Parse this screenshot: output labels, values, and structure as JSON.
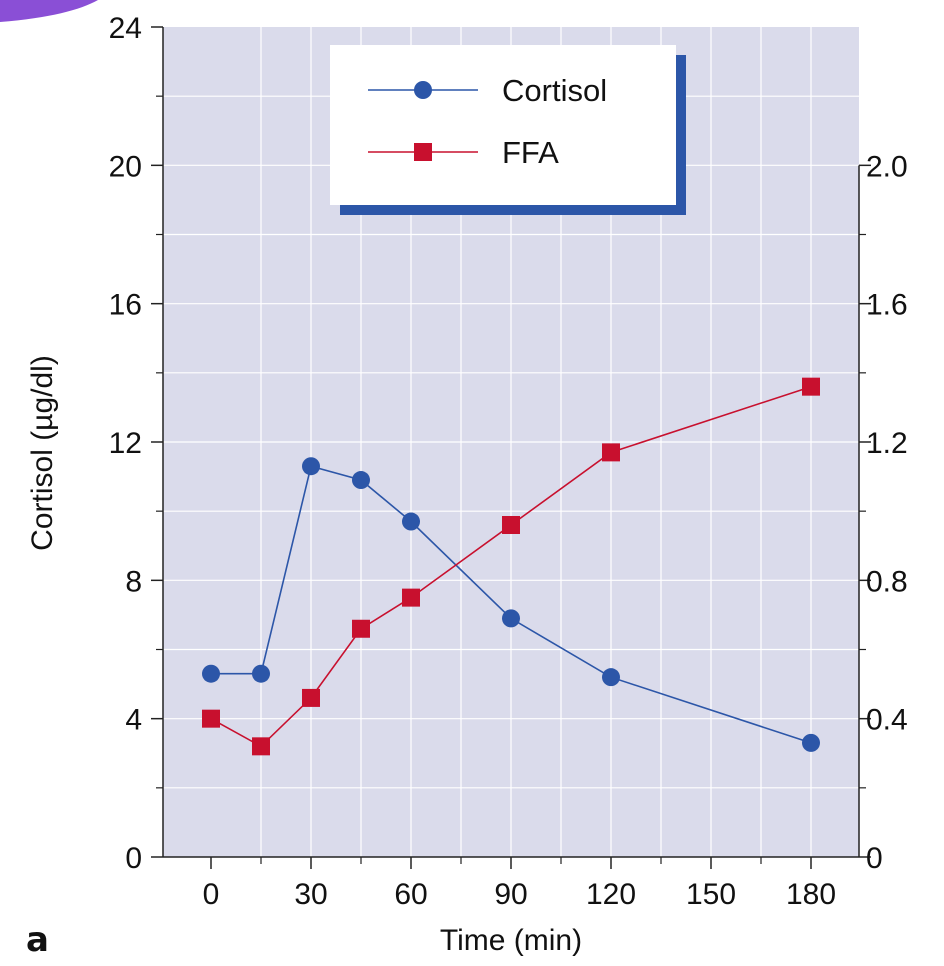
{
  "chart_data": {
    "type": "line",
    "panel_label": "a",
    "xlabel": "Time (min)",
    "ylabel": "Cortisol (µg/dl)",
    "xlim": [
      -15,
      195
    ],
    "ylim": [
      0,
      24
    ],
    "y2lim": [
      0,
      2.4
    ],
    "x_ticks": [
      0,
      30,
      60,
      90,
      120,
      150,
      180
    ],
    "y_ticks": [
      0,
      4,
      8,
      12,
      16,
      20,
      24
    ],
    "y2_tick_labels": [
      "0",
      "0.4",
      "0.8",
      "1.2",
      "1.6",
      "2.0"
    ],
    "y2_ticks": [
      0,
      0.4,
      0.8,
      1.2,
      1.6,
      2.0
    ],
    "grid": true,
    "legend_position": "top-center",
    "series": [
      {
        "name": "Cortisol",
        "axis": "left",
        "marker": "circle",
        "color": "#2c56a8",
        "x": [
          0,
          15,
          30,
          45,
          60,
          90,
          120,
          180
        ],
        "y": [
          5.3,
          5.3,
          11.3,
          10.9,
          9.7,
          6.9,
          5.2,
          3.3
        ]
      },
      {
        "name": "FFA",
        "axis": "right",
        "marker": "square",
        "color": "#c8102e",
        "x": [
          0,
          15,
          30,
          45,
          60,
          90,
          120,
          180
        ],
        "y": [
          0.4,
          0.32,
          0.46,
          0.66,
          0.75,
          0.96,
          1.17,
          1.36
        ]
      }
    ]
  },
  "colors": {
    "plot_background": "#dadbeb",
    "grid": "#ffffff",
    "legend_shadow": "#2c56a8",
    "corner_accent": "#8a4fd6"
  }
}
